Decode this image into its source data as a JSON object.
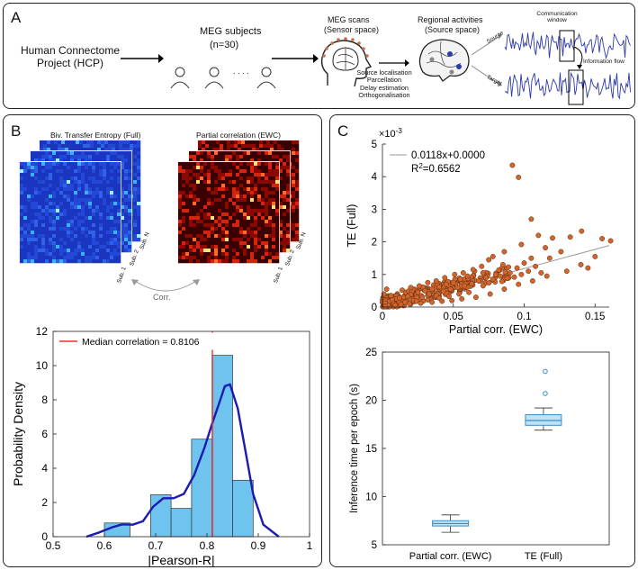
{
  "panel_a": {
    "label": "A",
    "hcp_label_1": "Human Connectome",
    "hcp_label_2": "Project (HCP)",
    "meg_subjects": "MEG subjects",
    "n_subjects": "(n=30)",
    "dots": ". . . .",
    "meg_scans": "MEG scans",
    "sensor_space": "(Sensor space)",
    "steps": [
      "Source localisation",
      "Parcellation",
      "Delay estimation",
      "Orthogonalisation"
    ],
    "regional": "Regional activities",
    "source_space": "(Source space)",
    "source": "Source",
    "target": "Target",
    "comm_window_1": "Communication",
    "comm_window_2": "window",
    "info_flow": "Information flow"
  },
  "panel_b": {
    "label": "B",
    "te_title": "Biv. Transfer Entropy (Full)",
    "pc_title": "Partial correlation (EWC)",
    "sub_1": "Sub. 1",
    "sub_2": "Sub. 2",
    "sub_n": "Sub. N",
    "corr": "Corr.",
    "colors": {
      "te_base": "#1f3fd0",
      "pc_base": "#3a0000",
      "bar": "#6ec3ef",
      "kde": "#1b1bb0",
      "median": "#e8322c"
    }
  },
  "panel_c": {
    "label": "C",
    "colors": {
      "point": "#d2652c",
      "fit": "#9a9a9a",
      "box": "#bfe3f5",
      "box_edge": "#3a8fc7"
    }
  },
  "chart_data": [
    {
      "type": "bar",
      "title": "",
      "xlabel": "|Pearson-R|",
      "ylabel": "Probability Density",
      "xlim": [
        0.5,
        1
      ],
      "ylim": [
        0,
        12
      ],
      "xticks": [
        "0.5",
        "0.6",
        "0.7",
        "0.8",
        "0.9",
        "1"
      ],
      "yticks": [
        "0",
        "2",
        "4",
        "6",
        "8",
        "10",
        "12"
      ],
      "bins": [
        {
          "from": 0.6,
          "to": 0.65,
          "value": 0.8
        },
        {
          "from": 0.65,
          "to": 0.69,
          "value": 0
        },
        {
          "from": 0.69,
          "to": 0.73,
          "value": 2.45
        },
        {
          "from": 0.73,
          "to": 0.77,
          "value": 1.65
        },
        {
          "from": 0.77,
          "to": 0.81,
          "value": 5.7
        },
        {
          "from": 0.81,
          "to": 0.85,
          "value": 10.6
        },
        {
          "from": 0.85,
          "to": 0.89,
          "value": 3.3
        }
      ],
      "kde_x": [
        0.565,
        0.59,
        0.615,
        0.635,
        0.655,
        0.675,
        0.695,
        0.715,
        0.735,
        0.755,
        0.775,
        0.795,
        0.81,
        0.825,
        0.835,
        0.845,
        0.86,
        0.875,
        0.89,
        0.91,
        0.94
      ],
      "kde_y": [
        0.0,
        0.25,
        0.55,
        0.72,
        0.7,
        0.9,
        1.75,
        2.25,
        2.25,
        2.5,
        3.6,
        5.2,
        6.6,
        7.9,
        8.8,
        8.9,
        7.5,
        5.0,
        2.5,
        0.7,
        0.0
      ],
      "median": 0.8106,
      "legend": "Median correlation = 0.8106"
    },
    {
      "type": "scatter",
      "xlabel": "Partial corr. (EWC)",
      "ylabel": "TE (Full)",
      "y_exponent": "×10",
      "y_exponent_power": "-3",
      "xlim": [
        0,
        0.16
      ],
      "ylim": [
        0,
        5
      ],
      "xticks": [
        "0",
        "0.05",
        "0.1",
        "0.15"
      ],
      "yticks": [
        "0",
        "1",
        "2",
        "3",
        "4",
        "5"
      ],
      "fit_label": "0.0118x+0.0000",
      "r2_label": "R",
      "r2_sup": "2",
      "r2_value": "=0.6562",
      "fit": {
        "slope": 11.8,
        "intercept": 0.0
      },
      "points": [
        [
          0.0917,
          4.35
        ],
        [
          0.096,
          3.98
        ],
        [
          0.105,
          2.7
        ],
        [
          0.1405,
          2.33
        ],
        [
          0.161,
          2.03
        ],
        [
          0.155,
          2.1
        ],
        [
          0.1325,
          2.15
        ],
        [
          0.11,
          2.2
        ],
        [
          0.12,
          2.12
        ],
        [
          0.098,
          1.92
        ],
        [
          0.086,
          1.7
        ],
        [
          0.115,
          1.82
        ],
        [
          0.126,
          1.7
        ],
        [
          0.105,
          1.5
        ],
        [
          0.078,
          1.55
        ],
        [
          0.112,
          1.05
        ],
        [
          0.095,
          1.2
        ],
        [
          0.085,
          1.3
        ],
        [
          0.07,
          1.25
        ],
        [
          0.065,
          1.1
        ],
        [
          0.075,
          1.45
        ],
        [
          0.1,
          1.35
        ],
        [
          0.09,
          1.05
        ],
        [
          0.08,
          1.0
        ],
        [
          0.06,
          0.95
        ],
        [
          0.055,
          0.85
        ],
        [
          0.05,
          0.75
        ],
        [
          0.045,
          0.7
        ],
        [
          0.04,
          0.62
        ],
        [
          0.035,
          0.55
        ],
        [
          0.03,
          0.5
        ],
        [
          0.025,
          0.45
        ],
        [
          0.02,
          0.38
        ],
        [
          0.015,
          0.3
        ],
        [
          0.01,
          0.25
        ],
        [
          0.005,
          0.18
        ],
        [
          0.002,
          0.12
        ],
        [
          0.007,
          0.22
        ],
        [
          0.012,
          0.28
        ],
        [
          0.018,
          0.33
        ],
        [
          0.022,
          0.2
        ],
        [
          0.028,
          0.3
        ],
        [
          0.033,
          0.4
        ],
        [
          0.038,
          0.35
        ],
        [
          0.043,
          0.48
        ],
        [
          0.048,
          0.55
        ],
        [
          0.053,
          0.6
        ],
        [
          0.058,
          0.65
        ],
        [
          0.063,
          0.72
        ],
        [
          0.068,
          0.8
        ],
        [
          0.073,
          0.9
        ],
        [
          0.078,
          0.85
        ],
        [
          0.083,
          0.95
        ],
        [
          0.088,
          0.88
        ],
        [
          0.093,
          0.92
        ],
        [
          0.098,
          1.0
        ],
        [
          0.103,
          1.1
        ],
        [
          0.108,
          1.25
        ],
        [
          0.004,
          0.05
        ],
        [
          0.008,
          0.1
        ],
        [
          0.016,
          0.15
        ],
        [
          0.024,
          0.18
        ],
        [
          0.032,
          0.22
        ],
        [
          0.04,
          0.28
        ],
        [
          0.047,
          0.33
        ],
        [
          0.054,
          0.4
        ],
        [
          0.061,
          0.45
        ],
        [
          0.001,
          0.4
        ],
        [
          0.003,
          0.55
        ],
        [
          0.006,
          0.35
        ],
        [
          0.014,
          0.52
        ],
        [
          0.02,
          0.6
        ],
        [
          0.026,
          0.65
        ],
        [
          0.032,
          0.75
        ],
        [
          0.038,
          0.8
        ],
        [
          0.044,
          0.9
        ],
        [
          0.051,
          1.0
        ],
        [
          0.057,
          1.05
        ],
        [
          0.064,
          1.15
        ],
        [
          0.071,
          1.05
        ],
        [
          0.002,
          0.02
        ],
        [
          0.009,
          0.06
        ],
        [
          0.013,
          0.08
        ],
        [
          0.019,
          0.1
        ],
        [
          0.027,
          0.12
        ],
        [
          0.035,
          0.15
        ],
        [
          0.042,
          0.18
        ],
        [
          0.049,
          0.2
        ],
        [
          0.056,
          0.25
        ],
        [
          0.066,
          0.3
        ],
        [
          0.076,
          0.4
        ],
        [
          0.086,
          0.55
        ],
        [
          0.096,
          0.7
        ],
        [
          0.106,
          0.8
        ],
        [
          0.116,
          0.95
        ],
        [
          0.13,
          1.1
        ],
        [
          0.14,
          1.3
        ],
        [
          0.15,
          1.55
        ],
        [
          0.145,
          1.2
        ],
        [
          0.118,
          1.5
        ]
      ]
    },
    {
      "type": "box",
      "ylabel": "Inference time per epoch (s)",
      "ylim": [
        5,
        25
      ],
      "yticks": [
        "5",
        "10",
        "15",
        "20",
        "25"
      ],
      "categories": [
        "Partial corr. (EWC)",
        "TE (Full)"
      ],
      "boxes": [
        {
          "min": 6.3,
          "q1": 6.95,
          "median": 7.2,
          "q3": 7.5,
          "max": 8.1,
          "outliers": []
        },
        {
          "min": 16.9,
          "q1": 17.4,
          "median": 17.9,
          "q3": 18.5,
          "max": 19.2,
          "outliers": [
            20.7,
            23.0
          ]
        }
      ]
    }
  ]
}
